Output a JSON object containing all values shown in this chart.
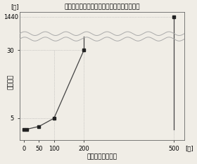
{
  "title": "「関数あたりの行数」と「待ち時間」の対応",
  "xlabel": "関数あたりの行数",
  "ylabel": "待ち時間",
  "ylabel_unit": "[分]",
  "xlabel_unit": "[行]",
  "x_data": [
    0,
    10,
    50,
    100,
    200,
    500
  ],
  "y_data": [
    1,
    1,
    2,
    5,
    30,
    1440
  ],
  "x_data_display": [
    0,
    10,
    50,
    100,
    200,
    500
  ],
  "y_data_display": [
    1,
    1,
    2,
    5,
    30,
    38
  ],
  "x_ticks": [
    0,
    50,
    100,
    200,
    500
  ],
  "y_ticks_bot": [
    5,
    30
  ],
  "y_tick_top": 1440,
  "y_top_display": 42,
  "y_break_y": 35,
  "xlim": [
    -15,
    535
  ],
  "ylim": [
    -3,
    44
  ],
  "line_color": "#444444",
  "marker_color": "#222222",
  "dot_line_color": "#aaaaaa",
  "wave_color": "#aaaaaa",
  "background_color": "#f0ede6",
  "title_fontsize": 6.5,
  "tick_fontsize": 6,
  "label_fontsize": 6.5,
  "wave_amplitude": 0.7,
  "wave_freq_cycles": 16
}
